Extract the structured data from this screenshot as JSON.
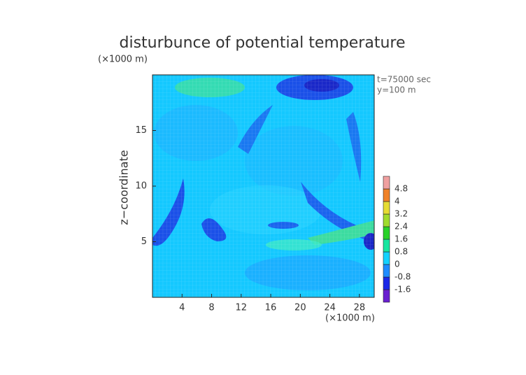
{
  "chart_data": {
    "type": "contour",
    "title": "disturbunce of potential temperature",
    "y_unit": "(×1000 m)",
    "x_unit": "(×1000 m)",
    "annotations": [
      "t=75000 sec",
      "y=100 m"
    ],
    "ylabel": "z−coordinate",
    "xlim": [
      0,
      30
    ],
    "ylim": [
      0,
      20
    ],
    "xticks": [
      4,
      8,
      12,
      16,
      20,
      24,
      28
    ],
    "yticks": [
      5,
      10,
      15
    ],
    "colorbar": {
      "levels": [
        -1.6,
        -0.8,
        0,
        0.8,
        1.6,
        2.4,
        3.2,
        4,
        4.8
      ],
      "colors": [
        "#6a1fd0",
        "#1a28e8",
        "#1e8cff",
        "#14d2ff",
        "#18e6a0",
        "#28d228",
        "#a0dc2c",
        "#e6dc32",
        "#f08228",
        "#f0a0a0"
      ]
    }
  }
}
